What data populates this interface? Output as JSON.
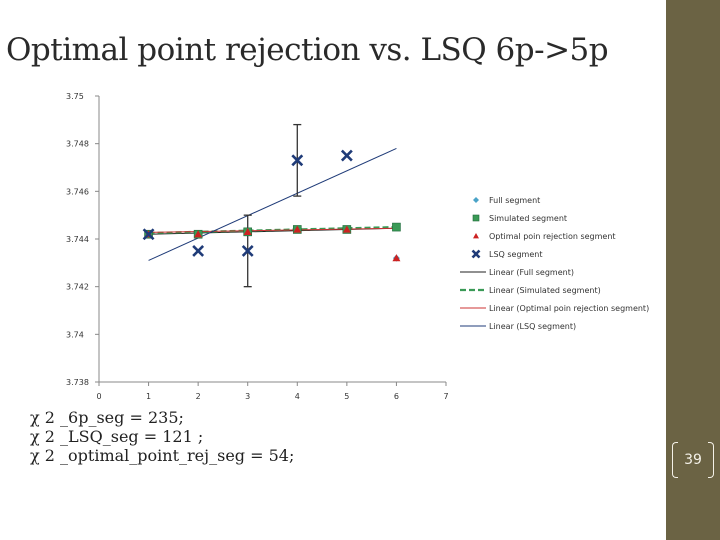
{
  "slide": {
    "title": "Optimal point rejection vs. LSQ 6p->5p",
    "page_number": "39",
    "notes": [
      "χ 2 _6p_seg = 235;",
      "χ 2 _LSQ_seg = 121 ;",
      "χ 2 _optimal_point_rej_seg = 54;"
    ],
    "colors": {
      "side_bar": "#6b6344"
    }
  },
  "chart_data": {
    "type": "scatter",
    "xlim": [
      0,
      7
    ],
    "ylim": [
      3.738,
      3.75
    ],
    "x_ticks": [
      "0",
      "1",
      "2",
      "3",
      "4",
      "5",
      "6",
      "7"
    ],
    "y_ticks": [
      "3.75",
      "3.748",
      "3.746",
      "3.744",
      "3.742",
      "3.74",
      "3.738"
    ],
    "grid": false,
    "legend_position": "right",
    "series": [
      {
        "name": "Full segment",
        "marker": "diamond",
        "color": "#4aa3c8",
        "x": [
          1,
          2,
          3,
          4,
          5,
          6
        ],
        "y": [
          3.7442,
          3.7442,
          3.7443,
          3.7444,
          3.7444,
          3.7432
        ]
      },
      {
        "name": "Simulated segment",
        "marker": "square",
        "color": "#3a9a56",
        "x": [
          1,
          2,
          3,
          4,
          5,
          6
        ],
        "y": [
          3.7442,
          3.7442,
          3.7443,
          3.7444,
          3.7444,
          3.7445
        ]
      },
      {
        "name": "Optimal poin rejection segment",
        "marker": "triangle",
        "color": "#cc2222",
        "x": [
          1,
          2,
          3,
          4,
          5,
          6
        ],
        "y": [
          3.7442,
          3.7442,
          3.7443,
          3.7444,
          3.7444,
          3.7432
        ]
      },
      {
        "name": "LSQ segment",
        "marker": "x",
        "color": "#1f3b78",
        "x": [
          1,
          2,
          3,
          4,
          5
        ],
        "y": [
          3.7442,
          3.7435,
          3.7435,
          3.7473,
          3.7475
        ]
      }
    ],
    "error_bars": [
      {
        "x": 3,
        "y": 3.7435,
        "low": 3.742,
        "high": 3.745
      },
      {
        "x": 4,
        "y": 3.7473,
        "low": 3.7458,
        "high": 3.7488
      }
    ],
    "trendlines": [
      {
        "name": "Linear (Full segment)",
        "color": "#222222",
        "style": "solid",
        "y_at_x1": 3.7442,
        "y_at_x6": 3.74445
      },
      {
        "name": "Linear (Simulated segment)",
        "color": "#3a9a56",
        "style": "dashed",
        "y_at_x1": 3.74425,
        "y_at_x6": 3.7445
      },
      {
        "name": "Linear (Optimal poin rejection segment)",
        "color": "#cc3333",
        "style": "solid",
        "y_at_x1": 3.74428,
        "y_at_x6": 3.74445
      },
      {
        "name": "Linear (LSQ segment)",
        "color": "#1f3b78",
        "style": "solid",
        "y_at_x1": 3.7431,
        "y_at_x6": 3.7478
      }
    ]
  }
}
